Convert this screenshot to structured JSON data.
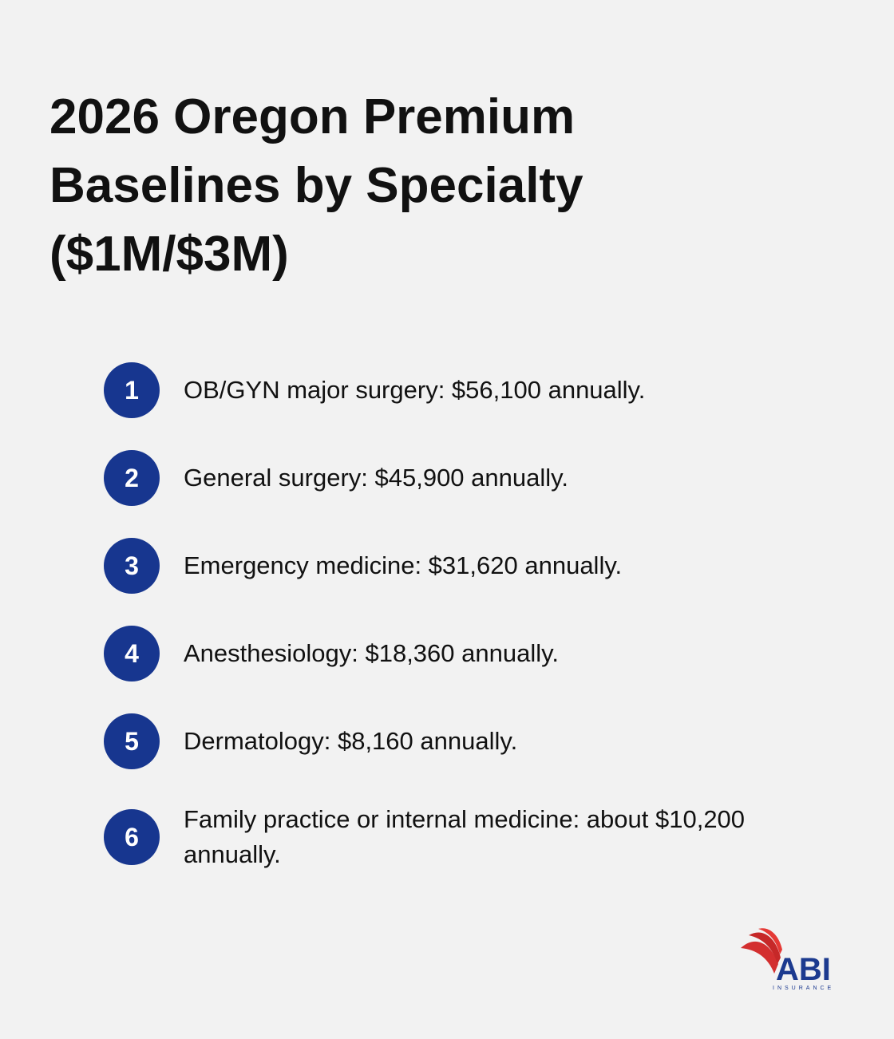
{
  "title_lines": [
    "2026 Oregon Premium",
    "Baselines by Specialty",
    "($1M/$3M)"
  ],
  "items": [
    {
      "number": 1,
      "text": "OB/GYN major surgery: $56,100 annually."
    },
    {
      "number": 2,
      "text": "General surgery: $45,900 annually."
    },
    {
      "number": 3,
      "text": "Emergency medicine: $31,620 annually."
    },
    {
      "number": 4,
      "text": "Anesthesiology: $18,360 annually."
    },
    {
      "number": 5,
      "text": "Dermatology: $8,160 annually."
    },
    {
      "number": 6,
      "text": "Family practice or internal medicine: about $10,200 annually."
    }
  ],
  "logo": {
    "name": "ABI",
    "tagline": "INSURANCE"
  }
}
